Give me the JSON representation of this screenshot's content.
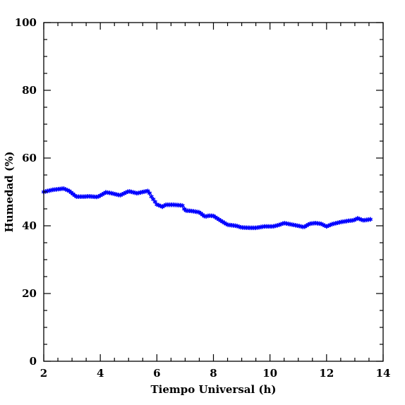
{
  "chart_data": {
    "type": "scatter",
    "title": "",
    "xlabel": "Tiempo Universal (h)",
    "ylabel": "Humedad (%)",
    "xlim": [
      2,
      14
    ],
    "ylim": [
      0,
      100
    ],
    "xticks": [
      2,
      4,
      6,
      8,
      10,
      12,
      14
    ],
    "yticks": [
      0,
      20,
      40,
      60,
      80,
      100
    ],
    "grid": false,
    "marker": "star",
    "series": [
      {
        "color": "#0000ff",
        "anchors_x": [
          2.0,
          2.3,
          2.7,
          2.9,
          3.15,
          3.4,
          3.6,
          3.9,
          4.1,
          4.2,
          4.4,
          4.7,
          5.0,
          5.3,
          5.5,
          5.7,
          5.8,
          6.0,
          6.2,
          6.3,
          6.6,
          6.9,
          7.0,
          7.2,
          7.5,
          7.7,
          7.85,
          8.0,
          8.3,
          8.5,
          8.8,
          9.0,
          9.3,
          9.5,
          9.8,
          10.1,
          10.3,
          10.5,
          10.8,
          11.0,
          11.2,
          11.4,
          11.6,
          11.8,
          12.0,
          12.2,
          12.5,
          12.8,
          12.95,
          13.1,
          13.3,
          13.55
        ],
        "anchors_y": [
          50.0,
          50.6,
          51.0,
          50.3,
          48.6,
          48.6,
          48.7,
          48.5,
          49.4,
          49.9,
          49.6,
          49.0,
          50.2,
          49.6,
          50.0,
          50.3,
          48.7,
          46.3,
          45.6,
          46.2,
          46.2,
          46.0,
          44.5,
          44.4,
          44.0,
          42.7,
          43.0,
          42.9,
          41.3,
          40.3,
          40.0,
          39.5,
          39.4,
          39.4,
          39.8,
          39.8,
          40.2,
          40.8,
          40.3,
          40.0,
          39.6,
          40.6,
          40.8,
          40.6,
          39.8,
          40.5,
          41.1,
          41.5,
          41.6,
          42.2,
          41.6,
          41.9
        ],
        "n_points": 180
      }
    ]
  }
}
